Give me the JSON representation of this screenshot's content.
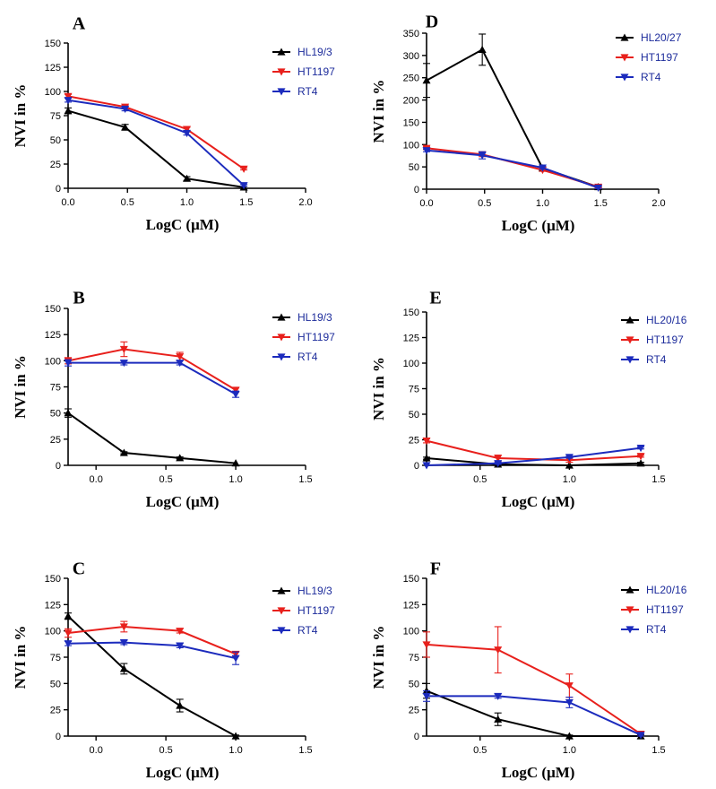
{
  "figure": {
    "description_title": ""
  },
  "chart_data": [
    {
      "type": "line",
      "panel": "A",
      "xlabel": "LogC (μM)",
      "ylabel": "NVI in %",
      "xlim": [
        0,
        2
      ],
      "ylim": [
        0,
        150
      ],
      "xticks": [
        0,
        0.5,
        1,
        1.5,
        2
      ],
      "xtick_labels": [
        "0.0",
        "0.5",
        "1.0",
        "1.5",
        "2.0"
      ],
      "yticks": [
        0,
        25,
        50,
        75,
        100,
        125,
        150
      ],
      "ytick_labels": [
        "0",
        "25",
        "50",
        "75",
        "100",
        "125",
        "150"
      ],
      "legend_position": "top-right",
      "series": [
        {
          "name": "HL19/3",
          "color": "#000000",
          "marker": "triangle-up",
          "x": [
            0,
            0.48,
            1.0,
            1.48
          ],
          "y": [
            80,
            63,
            10,
            1
          ],
          "err": [
            3,
            3,
            2,
            1
          ]
        },
        {
          "name": "HT1197",
          "color": "#e8201c",
          "marker": "triangle-down",
          "x": [
            0,
            0.48,
            1.0,
            1.48
          ],
          "y": [
            95,
            84,
            61,
            20
          ],
          "err": [
            2,
            2,
            2,
            1
          ]
        },
        {
          "name": "RT4",
          "color": "#1c2bbd",
          "marker": "triangle-down",
          "x": [
            0,
            0.48,
            1.0,
            1.48
          ],
          "y": [
            91,
            82,
            57,
            3
          ],
          "err": [
            2,
            2,
            2,
            1
          ]
        }
      ]
    },
    {
      "type": "line",
      "panel": "B",
      "xlabel": "LogC (μM)",
      "ylabel": "NVI in %",
      "xlim": [
        -0.2,
        1.5
      ],
      "ylim": [
        0,
        150
      ],
      "xticks": [
        0,
        0.5,
        1,
        1.5
      ],
      "xtick_labels": [
        "0.0",
        "0.5",
        "1.0",
        "1.5"
      ],
      "yticks": [
        0,
        25,
        50,
        75,
        100,
        125,
        150
      ],
      "ytick_labels": [
        "0",
        "25",
        "50",
        "75",
        "100",
        "125",
        "150"
      ],
      "legend_position": "top-right",
      "series": [
        {
          "name": "HL19/3",
          "color": "#000000",
          "marker": "triangle-up",
          "x": [
            -0.2,
            0.2,
            0.6,
            1.0
          ],
          "y": [
            50,
            12,
            7,
            2
          ],
          "err": [
            4,
            1,
            1,
            0.5
          ]
        },
        {
          "name": "HT1197",
          "color": "#e8201c",
          "marker": "triangle-down",
          "x": [
            -0.2,
            0.2,
            0.6,
            1.0
          ],
          "y": [
            100,
            111,
            104,
            72
          ],
          "err": [
            3,
            7,
            4,
            2
          ]
        },
        {
          "name": "RT4",
          "color": "#1c2bbd",
          "marker": "triangle-down",
          "x": [
            -0.2,
            0.2,
            0.6,
            1.0
          ],
          "y": [
            98,
            98,
            98,
            68
          ],
          "err": [
            3,
            2,
            2,
            3
          ]
        }
      ]
    },
    {
      "type": "line",
      "panel": "C",
      "xlabel": "LogC (μM)",
      "ylabel": "NVI in %",
      "xlim": [
        -0.2,
        1.5
      ],
      "ylim": [
        0,
        150
      ],
      "xticks": [
        0,
        0.5,
        1,
        1.5
      ],
      "xtick_labels": [
        "0.0",
        "0.5",
        "1.0",
        "1.5"
      ],
      "yticks": [
        0,
        25,
        50,
        75,
        100,
        125,
        150
      ],
      "ytick_labels": [
        "0",
        "25",
        "50",
        "75",
        "100",
        "125",
        "150"
      ],
      "legend_position": "top-right",
      "series": [
        {
          "name": "HL19/3",
          "color": "#000000",
          "marker": "triangle-up",
          "x": [
            -0.2,
            0.2,
            0.6,
            1.0
          ],
          "y": [
            114,
            64,
            29,
            0
          ],
          "err": [
            3,
            5,
            6,
            1
          ]
        },
        {
          "name": "HT1197",
          "color": "#e8201c",
          "marker": "triangle-down",
          "x": [
            -0.2,
            0.2,
            0.6,
            1.0
          ],
          "y": [
            98,
            104,
            100,
            78
          ],
          "err": [
            4,
            5,
            2,
            2
          ]
        },
        {
          "name": "RT4",
          "color": "#1c2bbd",
          "marker": "triangle-down",
          "x": [
            -0.2,
            0.2,
            0.6,
            1.0
          ],
          "y": [
            88,
            89,
            86,
            74
          ],
          "err": [
            2,
            2,
            2,
            6
          ]
        }
      ]
    },
    {
      "type": "line",
      "panel": "D",
      "xlabel": "LogC (μM)",
      "ylabel": "NVI in %",
      "xlim": [
        0,
        2
      ],
      "ylim": [
        0,
        350
      ],
      "xticks": [
        0,
        0.5,
        1,
        1.5,
        2
      ],
      "xtick_labels": [
        "0.0",
        "0.5",
        "1.0",
        "1.5",
        "2.0"
      ],
      "yticks": [
        0,
        50,
        100,
        150,
        200,
        250,
        300,
        350
      ],
      "ytick_labels": [
        "0",
        "50",
        "100",
        "150",
        "200",
        "250",
        "300",
        "350"
      ],
      "legend_position": "top-right",
      "series": [
        {
          "name": "HL20/27",
          "color": "#000000",
          "marker": "triangle-up",
          "x": [
            0,
            0.48,
            1.0,
            1.48
          ],
          "y": [
            244,
            313,
            47,
            5
          ],
          "err": [
            38,
            35,
            4,
            2
          ]
        },
        {
          "name": "HT1197",
          "color": "#e8201c",
          "marker": "triangle-down",
          "x": [
            0,
            0.48,
            1.0,
            1.48
          ],
          "y": [
            92,
            78,
            43,
            5
          ],
          "err": [
            3,
            5,
            3,
            2
          ]
        },
        {
          "name": "RT4",
          "color": "#1c2bbd",
          "marker": "triangle-down",
          "x": [
            0,
            0.48,
            1.0,
            1.48
          ],
          "y": [
            87,
            76,
            48,
            3
          ],
          "err": [
            3,
            8,
            3,
            2
          ]
        }
      ]
    },
    {
      "type": "line",
      "panel": "E",
      "xlabel": "LogC (μM)",
      "ylabel": "NVI in %",
      "xlim": [
        0.2,
        1.5
      ],
      "ylim": [
        0,
        150
      ],
      "xticks": [
        0.5,
        1,
        1.5
      ],
      "xtick_labels": [
        "0.5",
        "1.0",
        "1.5"
      ],
      "yticks": [
        0,
        25,
        50,
        75,
        100,
        125,
        150
      ],
      "ytick_labels": [
        "0",
        "25",
        "50",
        "75",
        "100",
        "125",
        "150"
      ],
      "legend_position": "top-right",
      "series": [
        {
          "name": "HL20/16",
          "color": "#000000",
          "marker": "triangle-up",
          "x": [
            0.2,
            0.6,
            1.0,
            1.4
          ],
          "y": [
            7,
            1,
            0,
            2
          ],
          "err": [
            1,
            1,
            0.5,
            1
          ]
        },
        {
          "name": "HT1197",
          "color": "#e8201c",
          "marker": "triangle-down",
          "x": [
            0.2,
            0.6,
            1.0,
            1.4
          ],
          "y": [
            24,
            7,
            5,
            9
          ],
          "err": [
            2,
            3,
            2,
            1
          ]
        },
        {
          "name": "RT4",
          "color": "#1c2bbd",
          "marker": "triangle-down",
          "x": [
            0.2,
            0.6,
            1.0,
            1.4
          ],
          "y": [
            0,
            2,
            8,
            17
          ],
          "err": [
            0.5,
            1,
            1,
            1
          ]
        }
      ]
    },
    {
      "type": "line",
      "panel": "F",
      "xlabel": "LogC (μM)",
      "ylabel": "NVI in %",
      "xlim": [
        0.2,
        1.5
      ],
      "ylim": [
        0,
        150
      ],
      "xticks": [
        0.5,
        1,
        1.5
      ],
      "xtick_labels": [
        "0.5",
        "1.0",
        "1.5"
      ],
      "yticks": [
        0,
        25,
        50,
        75,
        100,
        125,
        150
      ],
      "ytick_labels": [
        "0",
        "25",
        "50",
        "75",
        "100",
        "125",
        "150"
      ],
      "legend_position": "top-right",
      "series": [
        {
          "name": "HL20/16",
          "color": "#000000",
          "marker": "triangle-up",
          "x": [
            0.2,
            0.6,
            1.0,
            1.4
          ],
          "y": [
            43,
            16,
            0,
            0
          ],
          "err": [
            7,
            6,
            1,
            1
          ]
        },
        {
          "name": "HT1197",
          "color": "#e8201c",
          "marker": "triangle-down",
          "x": [
            0.2,
            0.6,
            1.0,
            1.4
          ],
          "y": [
            87,
            82,
            48,
            2
          ],
          "err": [
            12,
            22,
            11,
            2
          ]
        },
        {
          "name": "RT4",
          "color": "#1c2bbd",
          "marker": "triangle-down",
          "x": [
            0.2,
            0.6,
            1.0,
            1.4
          ],
          "y": [
            38,
            38,
            32,
            1
          ],
          "err": [
            5,
            2,
            5,
            1
          ]
        }
      ]
    }
  ]
}
